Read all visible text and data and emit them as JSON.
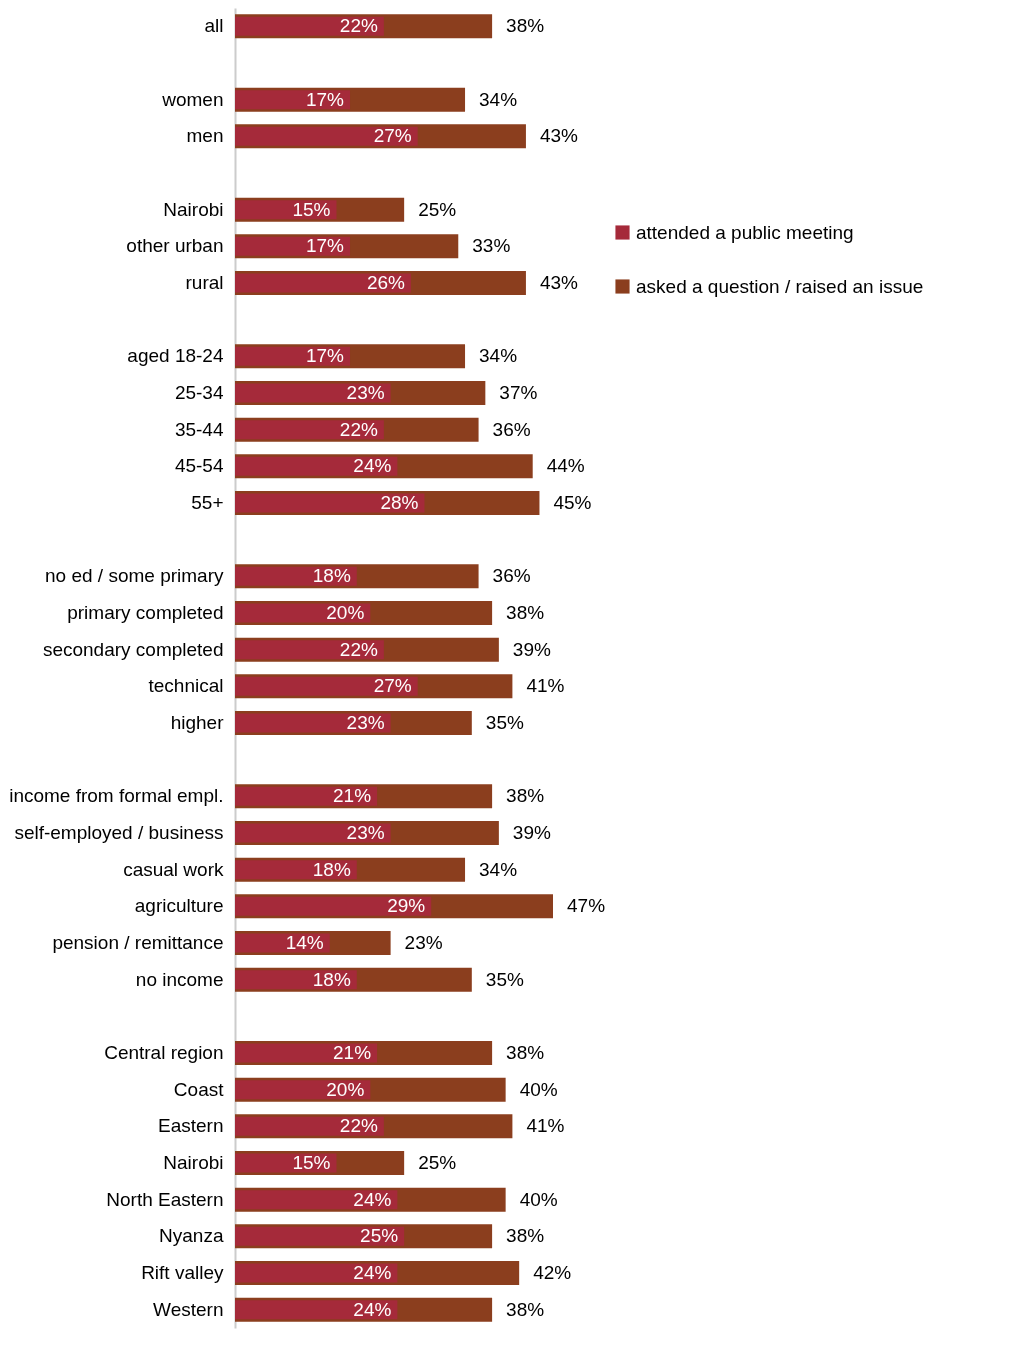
{
  "chart_data": {
    "type": "bar",
    "orientation": "horizontal",
    "legend": "right",
    "categories": [
      "all",
      null,
      "women",
      "men",
      null,
      "Nairobi",
      "other urban",
      "rural",
      null,
      "aged 18-24",
      "25-34",
      "35-44",
      "45-54",
      "55+",
      null,
      "no ed / some primary",
      "primary completed",
      "secondary completed",
      "technical",
      "higher",
      null,
      "income from formal empl.",
      "self-employed / business",
      "casual work",
      "agriculture",
      "pension / remittance",
      "no income",
      null,
      "Central region",
      "Coast",
      "Eastern",
      "Nairobi",
      "North Eastern",
      "Nyanza",
      "Rift valley",
      "Western"
    ],
    "series": [
      {
        "name": "attended a public meeting",
        "color": "#a52a3a",
        "values": [
          22,
          null,
          17,
          27,
          null,
          15,
          17,
          26,
          null,
          17,
          23,
          22,
          24,
          28,
          null,
          18,
          20,
          22,
          27,
          23,
          null,
          21,
          23,
          18,
          29,
          14,
          18,
          null,
          21,
          20,
          22,
          15,
          24,
          25,
          24,
          24
        ],
        "value_labels": [
          "22%",
          null,
          "17%",
          "27%",
          null,
          "15%",
          "17%",
          "26%",
          null,
          "17%",
          "23%",
          "22%",
          "24%",
          "28%",
          null,
          "18%",
          "20%",
          "22%",
          "27%",
          "23%",
          null,
          "21%",
          "23%",
          "18%",
          "29%",
          "14%",
          "18%",
          null,
          "21%",
          "20%",
          "22%",
          "15%",
          "24%",
          "25%",
          "24%",
          "24%"
        ]
      },
      {
        "name": "asked a question / raised an issue",
        "color": "#8b3e1e",
        "values": [
          38,
          null,
          34,
          43,
          null,
          25,
          33,
          43,
          null,
          34,
          37,
          36,
          44,
          45,
          null,
          36,
          38,
          39,
          41,
          35,
          null,
          38,
          39,
          34,
          47,
          23,
          35,
          null,
          38,
          40,
          41,
          25,
          40,
          38,
          42,
          38
        ],
        "value_labels": [
          "38%",
          null,
          "34%",
          "43%",
          null,
          "25%",
          "33%",
          "43%",
          null,
          "34%",
          "37%",
          "36%",
          "44%",
          "45%",
          null,
          "36%",
          "38%",
          "39%",
          "41%",
          "35%",
          null,
          "38%",
          "39%",
          "34%",
          "47%",
          "23%",
          "35%",
          null,
          "38%",
          "40%",
          "41%",
          "25%",
          "40%",
          "38%",
          "42%",
          "38%"
        ]
      }
    ]
  }
}
